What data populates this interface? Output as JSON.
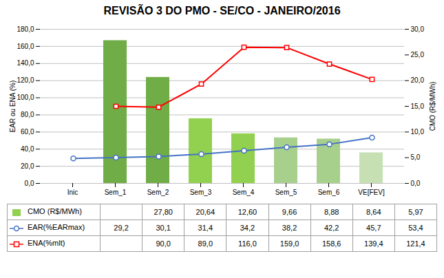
{
  "chart_data": {
    "type": "bar",
    "title": "REVISÃO 3 DO PMO - SE/CO - JANEIRO/2016",
    "categories": [
      "Inic",
      "Sem_1",
      "Sem_2",
      "Sem_3",
      "Sem_4",
      "Sem_5",
      "Sem_6",
      "VE[FEV]"
    ],
    "series": [
      {
        "name": "CMO (R$/MWh)",
        "type": "bar",
        "axis": "y2",
        "color": "#92D050",
        "colors": [
          null,
          "#70AD47",
          "#70AD47",
          "#92D050",
          "#92D050",
          "#A8D08D",
          "#A8D08D",
          "#C6E0B4"
        ],
        "values": [
          null,
          27.8,
          20.64,
          12.6,
          9.66,
          8.88,
          8.64,
          5.97
        ],
        "value_labels": [
          null,
          "27,80",
          "20,64",
          "12,60",
          "9,66",
          "8,88",
          "8,64",
          "5,97"
        ]
      },
      {
        "name": "EAR(%EARmax)",
        "type": "line",
        "color": "#4472C4",
        "marker": "circle",
        "values": [
          29.2,
          30.1,
          31.4,
          34.2,
          38.2,
          42.2,
          45.7,
          53.4
        ],
        "value_labels": [
          "29,2",
          "30,1",
          "31,4",
          "34,2",
          "38,2",
          "42,2",
          "45,7",
          "53,4"
        ]
      },
      {
        "name": "ENA(%mlt)",
        "type": "line",
        "color": "#FF0000",
        "marker": "square",
        "values": [
          null,
          90.0,
          89.0,
          116.0,
          159.0,
          158.6,
          139.4,
          121.4
        ],
        "value_labels": [
          null,
          "90,0",
          "89,0",
          "116,0",
          "159,0",
          "158,6",
          "139,4",
          "121,4"
        ]
      }
    ],
    "ylabel": "EAR ou ENA (%)",
    "y2label": "CMO (R$/MWh)",
    "ylim": [
      0,
      180
    ],
    "yticks": [
      {
        "value": 0,
        "label": "0,0"
      },
      {
        "value": 20,
        "label": "20,0"
      },
      {
        "value": 40,
        "label": "40,0"
      },
      {
        "value": 60,
        "label": "60,0"
      },
      {
        "value": 80,
        "label": "80,0"
      },
      {
        "value": 100,
        "label": "100,0"
      },
      {
        "value": 120,
        "label": "120,0"
      },
      {
        "value": 140,
        "label": "140,0"
      },
      {
        "value": 160,
        "label": "160,0"
      },
      {
        "value": 180,
        "label": "180,0"
      }
    ],
    "y2lim": [
      0,
      30
    ],
    "y2ticks": [
      {
        "value": 0,
        "label": "0,0"
      },
      {
        "value": 5,
        "label": "5,0"
      },
      {
        "value": 10,
        "label": "10,0"
      },
      {
        "value": 15,
        "label": "15,0"
      },
      {
        "value": 20,
        "label": "20,0"
      },
      {
        "value": 25,
        "label": "25,0"
      },
      {
        "value": 30,
        "label": "30,0"
      }
    ],
    "grid": true,
    "legend": "bottom"
  }
}
